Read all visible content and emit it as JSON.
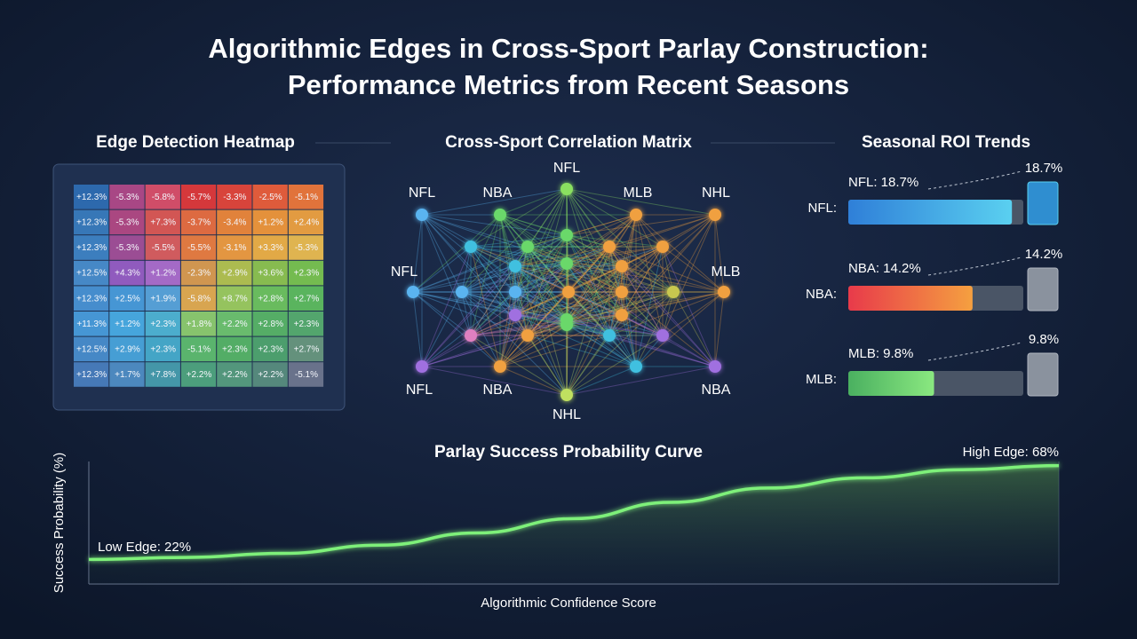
{
  "title": [
    "Algorithmic Edges in Cross-Sport Parlay Construction:",
    "Performance Metrics from Recent Seasons"
  ],
  "heatmap": {
    "title": "Edge Detection Heatmap",
    "rows": [
      [
        "+12.3%",
        "-5.3%",
        "-5.8%",
        "-5.7%",
        "-3.3%",
        "-2.5%",
        "-5.1%"
      ],
      [
        "+12.3%",
        "-5.3%",
        "+7.3%",
        "-3.7%",
        "-3.4%",
        "+1.2%",
        "+2.4%"
      ],
      [
        "+12.3%",
        "-5.3%",
        "-5.5%",
        "-5.5%",
        "-3.1%",
        "+3.3%",
        "-5.3%"
      ],
      [
        "+12.5%",
        "+4.3%",
        "+1.2%",
        "-2.3%",
        "+2.9%",
        "+3.6%",
        "+2.3%"
      ],
      [
        "+12.3%",
        "+2.5%",
        "+1.9%",
        "-5.8%",
        "+8.7%",
        "+2.8%",
        "+2.7%"
      ],
      [
        "+11.3%",
        "+1.2%",
        "+2.3%",
        "+1.8%",
        "+2.2%",
        "+2.8%",
        "+2.3%"
      ],
      [
        "+12.5%",
        "+2.9%",
        "+2.3%",
        "-5.1%",
        "+2.3%",
        "+2.3%",
        "+2.7%"
      ],
      [
        "+12.3%",
        "+1.7%",
        "+7.8%",
        "+2.2%",
        "+2.2%",
        "+2.2%",
        "-5.1%"
      ]
    ],
    "colors": [
      [
        "#2f6fb5",
        "#b44a8a",
        "#e0506a",
        "#e53a3a",
        "#e8473a",
        "#f0603a",
        "#f27a3a"
      ],
      [
        "#3a7ec0",
        "#b64a86",
        "#e25a55",
        "#ee7040",
        "#f28a3a",
        "#f59a3a",
        "#f3a540"
      ],
      [
        "#3f86c8",
        "#a6509a",
        "#e06060",
        "#f08040",
        "#f4a040",
        "#f3b445",
        "#f0c050"
      ],
      [
        "#4a90d0",
        "#9a60c8",
        "#b070d0",
        "#e0a050",
        "#b8c850",
        "#90c850",
        "#7cc850"
      ],
      [
        "#4a96d8",
        "#4aa0e0",
        "#5aa8e0",
        "#e8b050",
        "#a0d060",
        "#70c860",
        "#60c060"
      ],
      [
        "#4aa0e0",
        "#4ab0e8",
        "#50b8d8",
        "#90d070",
        "#70c870",
        "#5ab868",
        "#58b070"
      ],
      [
        "#4a90d0",
        "#4aa8e0",
        "#48b0d0",
        "#60c070",
        "#58b868",
        "#50a870",
        "#6a9a80"
      ],
      [
        "#4a80c0",
        "#5090c8",
        "#48a0b0",
        "#50a880",
        "#58a080",
        "#5a9080",
        "#707890"
      ]
    ]
  },
  "network": {
    "title": "Cross-Sport Correlation Matrix",
    "labels": [
      "NFL",
      "NFL",
      "NBA",
      "MLB",
      "NHL",
      "NFL",
      "MLB",
      "NFL",
      "NBA",
      "NBA",
      "NHL"
    ]
  },
  "roi": {
    "title": "Seasonal ROI Trends",
    "axis_labels": [
      "NFL:",
      "NBA:",
      "MLB:"
    ],
    "bar_labels": [
      "NFL: 18.7%",
      "NBA: 14.2%",
      "MLB: 9.8%"
    ],
    "values": [
      18.7,
      14.2,
      9.8
    ],
    "value_labels": [
      "18.7%",
      "14.2%",
      "9.8%"
    ],
    "xlim": [
      0,
      20
    ],
    "colors": [
      [
        "#2f7fd8",
        "#5ad0f0"
      ],
      [
        "#e83a4a",
        "#f5a040"
      ],
      [
        "#4ab060",
        "#8ae880"
      ]
    ]
  },
  "curve": {
    "type": "line",
    "title": "Parlay Success Probability Curve",
    "xlabel": "Algorithmic Confidence Score",
    "ylabel": "Success Probability (%)",
    "x": [
      0,
      1,
      2,
      3,
      4,
      5,
      6,
      7,
      8,
      9,
      10
    ],
    "values": [
      22,
      23,
      25,
      29,
      35,
      42,
      50,
      57,
      62,
      66,
      68
    ],
    "xlim": [
      0,
      10
    ],
    "ylim": [
      10,
      70
    ],
    "color": "#7ef07a",
    "annotations": [
      "Low Edge: 22%",
      "High Edge: 68%"
    ]
  }
}
